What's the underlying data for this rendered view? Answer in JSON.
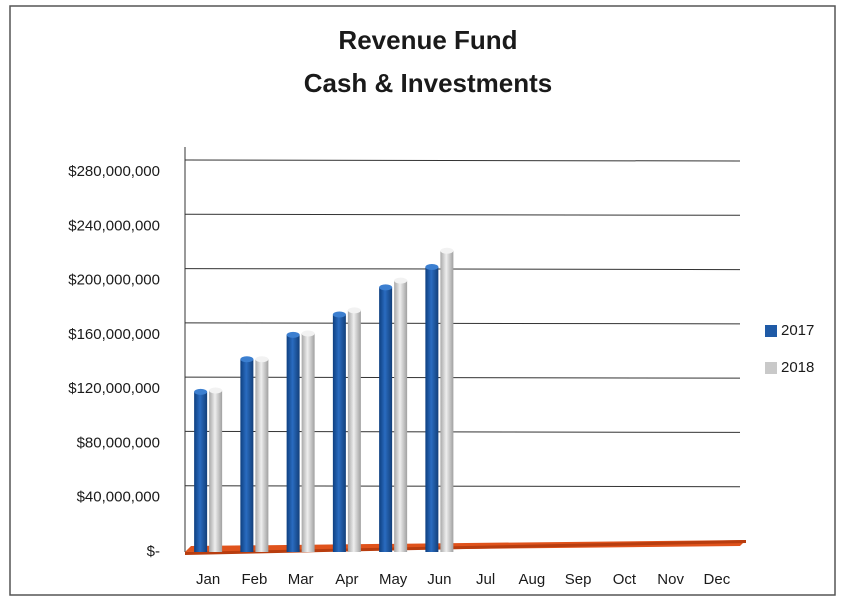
{
  "chart_data": {
    "type": "bar3d",
    "title": [
      "Revenue Fund",
      "Cash & Investments"
    ],
    "categories": [
      "Jan",
      "Feb",
      "Mar",
      "Apr",
      "May",
      "Jun",
      "Jul",
      "Aug",
      "Sep",
      "Oct",
      "Nov",
      "Dec"
    ],
    "series": [
      {
        "name": "2017",
        "color": "#1f5aa6",
        "values": [
          118000000,
          142000000,
          160000000,
          175000000,
          195000000,
          210000000,
          null,
          null,
          null,
          null,
          null,
          null
        ]
      },
      {
        "name": "2018",
        "color": "#c9c9c9",
        "values": [
          119000000,
          142000000,
          161000000,
          178000000,
          200000000,
          222000000,
          null,
          null,
          null,
          null,
          null,
          null
        ]
      }
    ],
    "ylim": [
      0,
      280000000
    ],
    "yticks": [
      {
        "value": 0,
        "label": "$-"
      },
      {
        "value": 40000000,
        "label": "$40,000,000"
      },
      {
        "value": 80000000,
        "label": "$80,000,000"
      },
      {
        "value": 120000000,
        "label": "$120,000,000"
      },
      {
        "value": 160000000,
        "label": "$160,000,000"
      },
      {
        "value": 200000000,
        "label": "$200,000,000"
      },
      {
        "value": 240000000,
        "label": "$240,000,000"
      },
      {
        "value": 280000000,
        "label": "$280,000,000"
      }
    ],
    "grid": true,
    "legend": "right"
  }
}
